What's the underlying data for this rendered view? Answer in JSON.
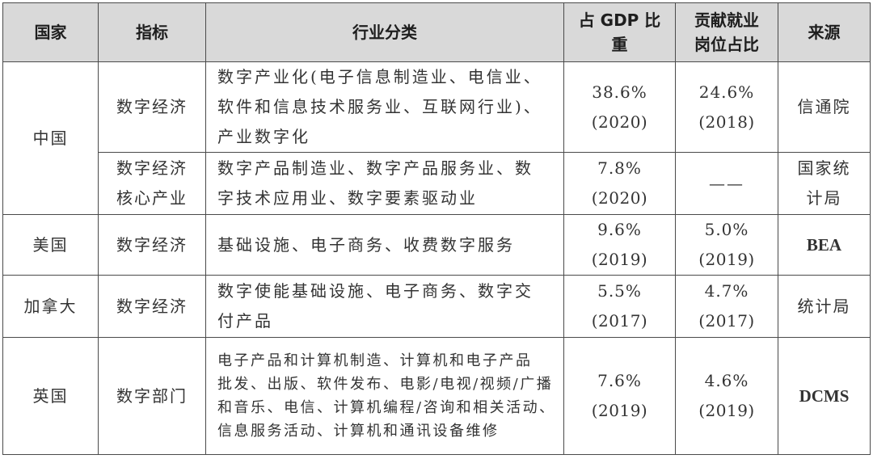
{
  "headers": {
    "country": "国家",
    "indicator": "指标",
    "industry": "行业分类",
    "gdp_share": [
      "占 GDP 比",
      "重"
    ],
    "job_share": [
      "贡献就业",
      "岗位占比"
    ],
    "source": "来源"
  },
  "rows": [
    {
      "country": "中国",
      "indicator": "数字经济",
      "industry": [
        "数字产业化(电子信息制造业、电信业、",
        "软件和信息技术服务业、互联网行业)、",
        "产业数字化"
      ],
      "gdp": "38.6%",
      "gdp_year": "(2020)",
      "job": "24.6%",
      "job_year": "(2018)",
      "source": "信通院"
    },
    {
      "indicator": [
        "数字经济",
        "核心产业"
      ],
      "industry": [
        "数字产品制造业、数字产品服务业、数",
        "字技术应用业、数字要素驱动业"
      ],
      "gdp": "7.8%",
      "gdp_year": "(2020)",
      "job": "——",
      "source": [
        "国家统",
        "计局"
      ]
    },
    {
      "country": "美国",
      "indicator": "数字经济",
      "industry": [
        "基础设施、电子商务、收费数字服务"
      ],
      "gdp": "9.6%",
      "gdp_year": "(2019)",
      "job": "5.0%",
      "job_year": "(2019)",
      "source": "BEA"
    },
    {
      "country": "加拿大",
      "indicator": "数字经济",
      "industry": [
        "数字使能基础设施、电子商务、数字交",
        "付产品"
      ],
      "gdp": "5.5%",
      "gdp_year": "(2017)",
      "job": "4.7%",
      "job_year": "(2017)",
      "source": "统计局"
    },
    {
      "country": "英国",
      "indicator": "数字部门",
      "industry": [
        "电子产品和计算机制造、计算机和电子产品",
        "批发、出版、软件发布、电影/电视/视频/广播",
        "和音乐、电信、计算机编程/咨询和相关活动、",
        "信息服务活动、计算机和通讯设备维修"
      ],
      "gdp": "7.6%",
      "gdp_year": "(2019)",
      "job": "4.6%",
      "job_year": "(2019)",
      "source": "DCMS"
    }
  ]
}
